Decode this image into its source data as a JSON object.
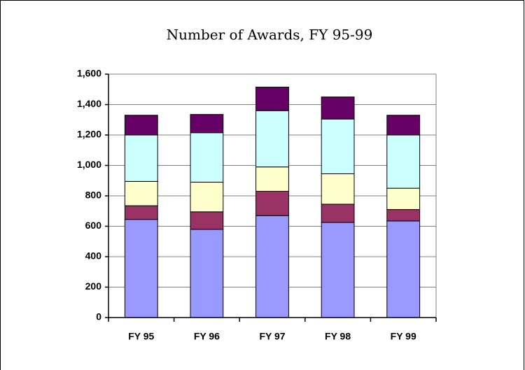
{
  "chart_data": {
    "type": "stacked_bar",
    "title": "Number of Awards, FY 95-99",
    "categories": [
      "FY 95",
      "FY 96",
      "FY 97",
      "FY 98",
      "FY 99"
    ],
    "series": [
      {
        "color": "#9999ff",
        "values": [
          645,
          580,
          670,
          625,
          635
        ]
      },
      {
        "color": "#993366",
        "values": [
          90,
          115,
          160,
          120,
          75
        ]
      },
      {
        "color": "#ffffcc",
        "values": [
          160,
          195,
          160,
          200,
          140
        ]
      },
      {
        "color": "#ccffff",
        "values": [
          305,
          325,
          370,
          360,
          350
        ]
      },
      {
        "color": "#660066",
        "values": [
          130,
          120,
          155,
          145,
          130
        ]
      }
    ],
    "ylim": [
      0,
      1600
    ],
    "yticks": [
      0,
      200,
      400,
      600,
      800,
      {
        "value": 1000,
        "label": "1,000"
      },
      {
        "value": 1200,
        "label": "1,200"
      },
      {
        "value": 1400,
        "label": "1,400"
      },
      {
        "value": 1600,
        "label": "1,600"
      }
    ],
    "grid": true
  }
}
